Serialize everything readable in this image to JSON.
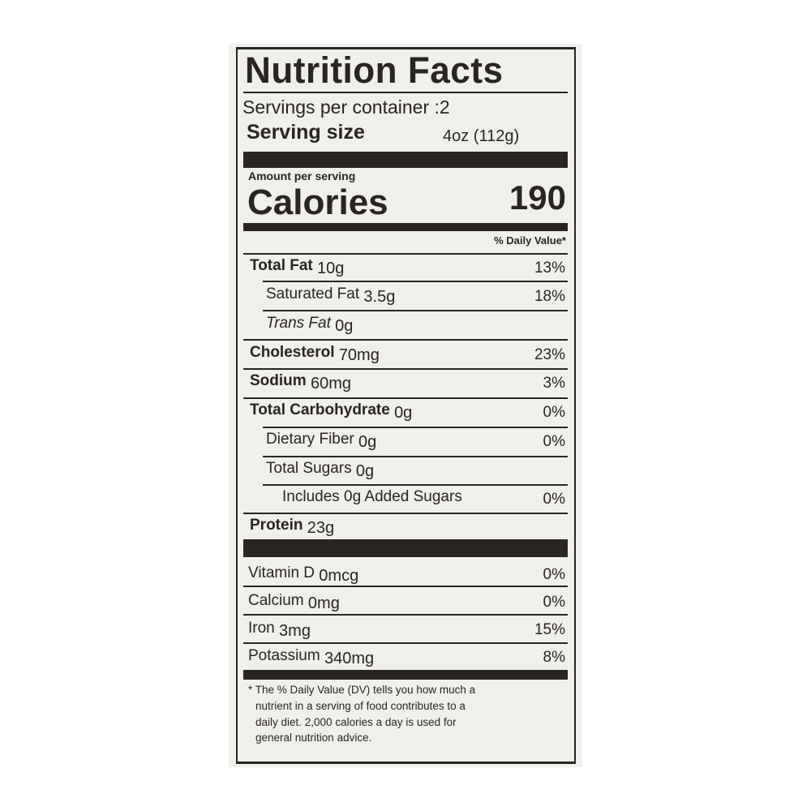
{
  "title": "Nutrition Facts",
  "servings_per_container": "Servings per container :2",
  "serving_size_label": "Serving size",
  "serving_size_value": "4oz (112g)",
  "amount_per_serving": "Amount per serving",
  "calories_label": "Calories",
  "calories_value": "190",
  "daily_value_header": "% Daily Value*",
  "nutrients": [
    {
      "name": "Total Fat",
      "amount": "10g",
      "dv": "13%",
      "bold": true,
      "indent": 0
    },
    {
      "name": "Saturated Fat",
      "amount": "3.5g",
      "dv": "18%",
      "bold": false,
      "indent": 1
    },
    {
      "name": "Trans Fat",
      "amount": "0g",
      "dv": "",
      "bold": false,
      "indent": 1,
      "italic_prefix": "Trans"
    },
    {
      "name": "Cholesterol",
      "amount": "70mg",
      "dv": "23%",
      "bold": true,
      "indent": 0
    },
    {
      "name": "Sodium",
      "amount": "60mg",
      "dv": "3%",
      "bold": true,
      "indent": 0
    },
    {
      "name": "Total Carbohydrate",
      "amount": "0g",
      "dv": "0%",
      "bold": true,
      "indent": 0
    },
    {
      "name": "Dietary Fiber",
      "amount": "0g",
      "dv": "0%",
      "bold": false,
      "indent": 1
    },
    {
      "name": "Total Sugars",
      "amount": "0g",
      "dv": "",
      "bold": false,
      "indent": 1
    },
    {
      "name": "Includes 0g Added Sugars",
      "amount": "",
      "dv": "0%",
      "bold": false,
      "indent": 2
    },
    {
      "name": "Protein",
      "amount": "23g",
      "dv": "",
      "bold": true,
      "indent": 0
    }
  ],
  "vitamins": [
    {
      "name": "Vitamin D",
      "amount": "0mcg",
      "dv": "0%"
    },
    {
      "name": "Calcium",
      "amount": "0mg",
      "dv": "0%"
    },
    {
      "name": "Iron",
      "amount": "3mg",
      "dv": "15%"
    },
    {
      "name": "Potassium",
      "amount": "340mg",
      "dv": "8%"
    }
  ],
  "footnote": [
    "* The % Daily Value (DV) tells you how much a",
    "nutrient in a serving of food contributes to a",
    "daily diet. 2,000 calories a day is used for",
    "general nutrition advice."
  ],
  "colors": {
    "ink": "#2a2422",
    "paper": "#efefeb"
  }
}
